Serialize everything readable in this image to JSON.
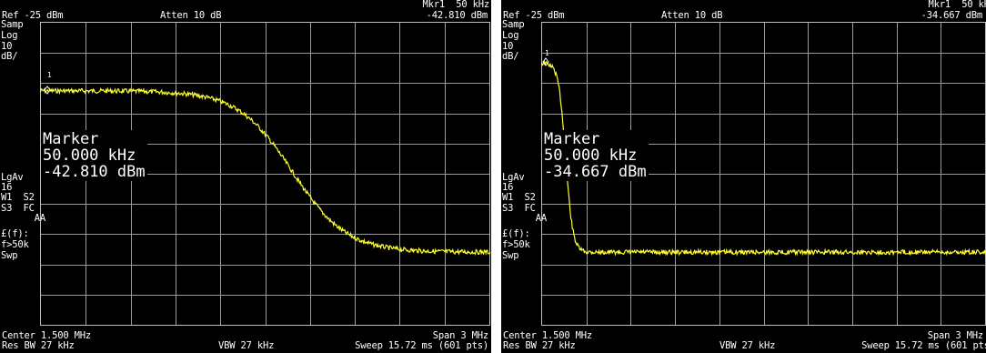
{
  "panels": [
    {
      "ref_level": "Ref -25 dBm",
      "atten": "Atten 10 dB",
      "mkr_header": "Mkr1  50 kHz",
      "mkr_value": "-42.810 dBm",
      "side_labels": [
        "Samp",
        "Log",
        "10",
        "dB/"
      ],
      "side_labels_lower": [
        "LgAv",
        "16",
        "W1  S2",
        "S3  FC",
        "      AA",
        "£(f):",
        "f>50k",
        "Swp"
      ],
      "marker_title": "Marker",
      "marker_freq": "50.000 kHz",
      "marker_level": "-42.810 dBm",
      "marker_number": "1",
      "center": "Center 1.500 MHz",
      "span": "Span 3 MHz",
      "res_bw": "Res BW 27 kHz",
      "vbw": "VBW 27 kHz",
      "sweep": "Sweep 15.72 ms (601 pts)",
      "trace_color": "#ffff33"
    },
    {
      "ref_level": "Ref -25 dBm",
      "atten": "Atten 10 dB",
      "mkr_header": "Mkr1  50 kHz",
      "mkr_value": "-34.667 dBm",
      "side_labels": [
        "Samp",
        "Log",
        "10",
        "dB/"
      ],
      "side_labels_lower": [
        "LgAv",
        "16",
        "W1  S2",
        "S3  FC",
        "      AA",
        "£(f):",
        "f>50k",
        "Swp"
      ],
      "marker_title": "Marker",
      "marker_freq": "50.000 kHz",
      "marker_level": "-34.667 dBm",
      "marker_number": "1",
      "center": "Center 1.500 MHz",
      "span": "Span 3 MHz",
      "res_bw": "Res BW 27 kHz",
      "vbw": "VBW 27 kHz",
      "sweep": "Sweep 15.72 ms (601 pts)",
      "trace_color": "#ffff33"
    }
  ]
}
